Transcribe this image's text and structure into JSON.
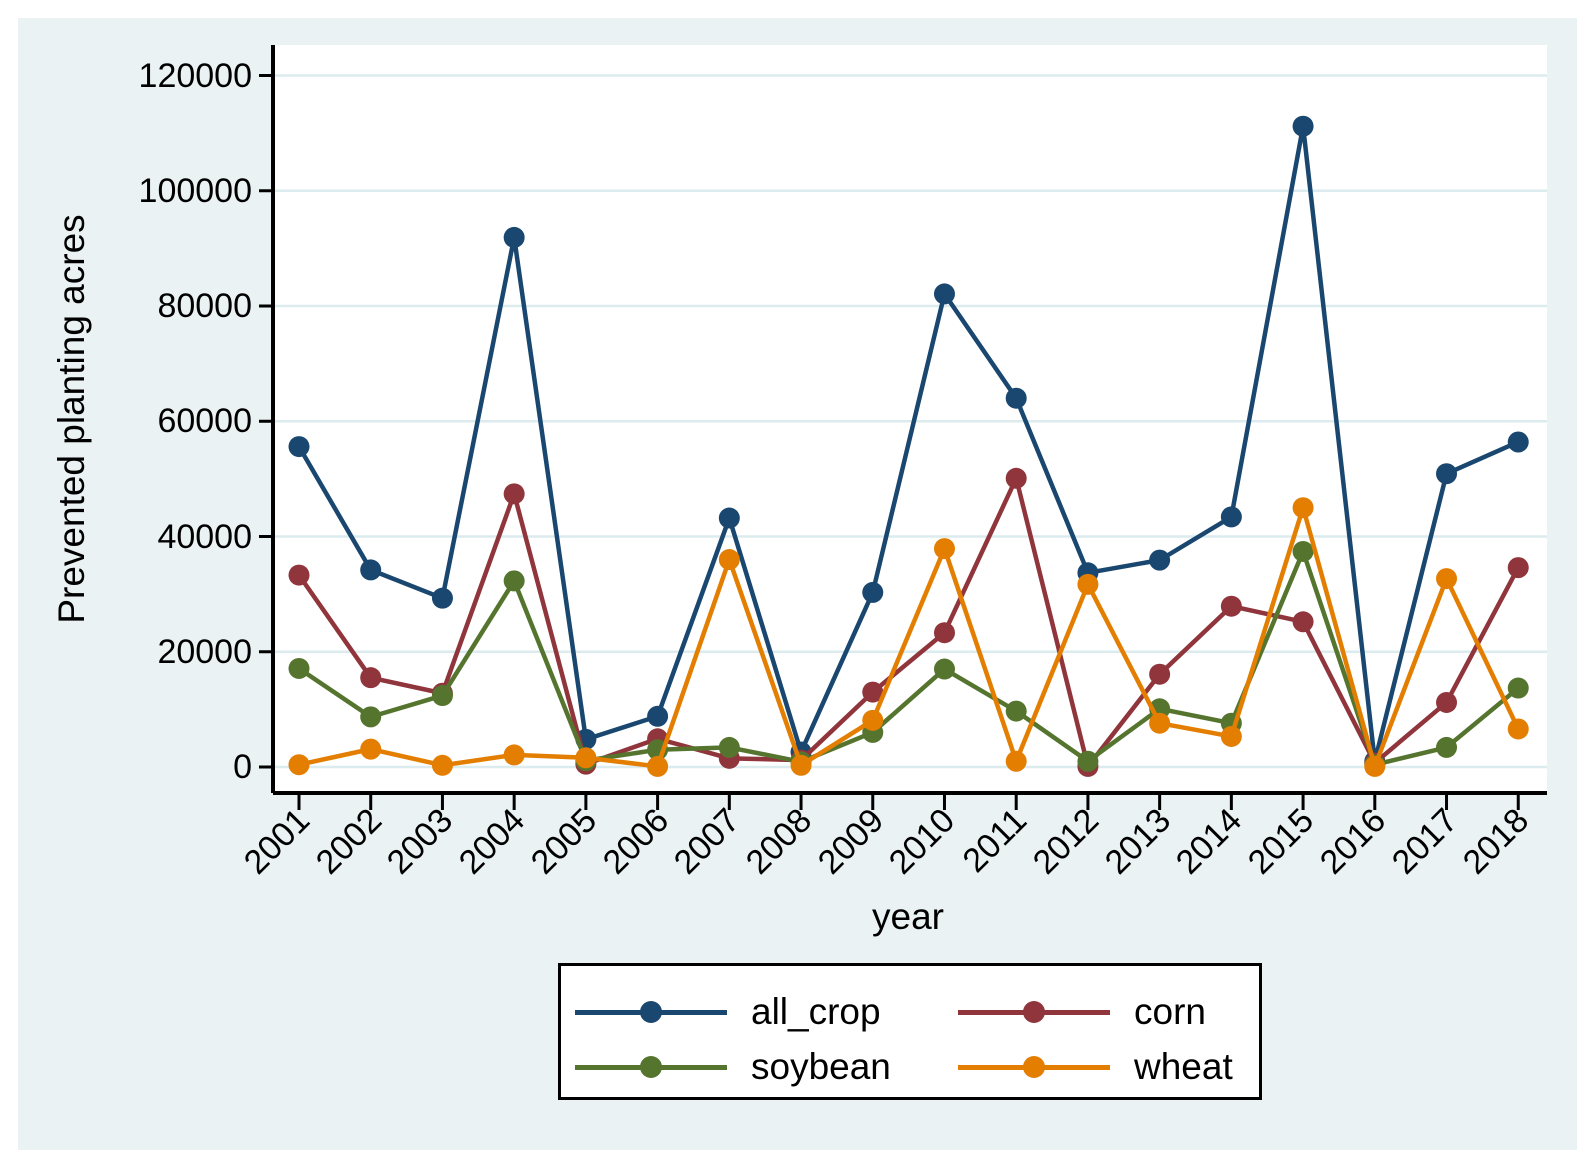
{
  "chart_data": {
    "type": "line",
    "title": "",
    "xlabel": "year",
    "ylabel": "Prevented planting acres",
    "x": [
      2001,
      2002,
      2003,
      2004,
      2005,
      2006,
      2007,
      2008,
      2009,
      2010,
      2011,
      2012,
      2013,
      2014,
      2015,
      2016,
      2017,
      2018
    ],
    "series": [
      {
        "name": "all_crop",
        "color": "#1a476f",
        "values": [
          55600,
          34200,
          29300,
          91900,
          4800,
          8800,
          43200,
          2600,
          30300,
          82100,
          64000,
          33700,
          35900,
          43400,
          111200,
          1000,
          50900,
          56400
        ]
      },
      {
        "name": "corn",
        "color": "#90353b",
        "values": [
          33300,
          15500,
          12800,
          47400,
          500,
          4900,
          1500,
          1200,
          13000,
          23300,
          50100,
          100,
          16100,
          27900,
          25200,
          700,
          11200,
          34600
        ]
      },
      {
        "name": "soybean",
        "color": "#55752f",
        "values": [
          17100,
          8700,
          12400,
          32300,
          1100,
          3000,
          3400,
          900,
          6000,
          17000,
          9700,
          1000,
          10100,
          7600,
          37400,
          400,
          3400,
          13700
        ]
      },
      {
        "name": "wheat",
        "color": "#e37e00",
        "values": [
          400,
          3100,
          300,
          2100,
          1600,
          100,
          36000,
          300,
          8100,
          37900,
          1000,
          31700,
          7600,
          5300,
          45000,
          100,
          32700,
          6600
        ]
      }
    ],
    "ylim": [
      0,
      120000
    ],
    "yticks": [
      0,
      20000,
      40000,
      60000,
      80000,
      100000,
      120000
    ],
    "xtick_labels": [
      "2001",
      "2002",
      "2003",
      "2004",
      "2005",
      "2006",
      "2007",
      "2008",
      "2009",
      "2010",
      "2011",
      "2012",
      "2013",
      "2014",
      "2015",
      "2016",
      "2017",
      "2018"
    ],
    "grid": "horizontal",
    "legend_position": "bottom",
    "colors": {
      "background": "#eaf2f3",
      "plot_background": "#ffffff",
      "grid_color": "#dcebee",
      "axis_color": "#000000",
      "text_color": "#000000"
    }
  }
}
